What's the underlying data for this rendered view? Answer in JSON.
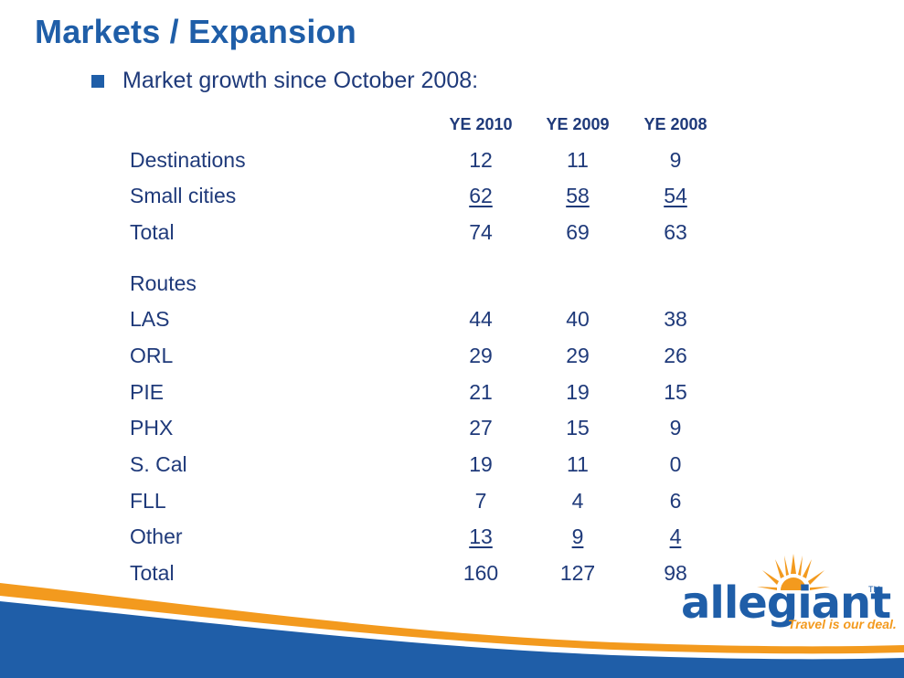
{
  "title": "Markets / Expansion",
  "bullet": "Market growth since October 2008:",
  "columns": [
    "YE 2010",
    "YE 2009",
    "YE 2008"
  ],
  "sections": {
    "destinations": {
      "rows": [
        {
          "label": "Destinations",
          "values": [
            "12",
            "11",
            "9"
          ]
        },
        {
          "label": "Small cities",
          "values": [
            "62",
            "58",
            "54"
          ]
        },
        {
          "label": "Total",
          "values": [
            "74",
            "69",
            "63"
          ]
        }
      ]
    },
    "routes": {
      "heading": "Routes",
      "rows": [
        {
          "label": "LAS",
          "values": [
            "44",
            "40",
            "38"
          ]
        },
        {
          "label": "ORL",
          "values": [
            "29",
            "29",
            "26"
          ]
        },
        {
          "label": "PIE",
          "values": [
            "21",
            "19",
            "15"
          ]
        },
        {
          "label": "PHX",
          "values": [
            "27",
            "15",
            "9"
          ]
        },
        {
          "label": "S. Cal",
          "values": [
            "19",
            "11",
            "0"
          ]
        },
        {
          "label": "FLL",
          "values": [
            "7",
            "4",
            "6"
          ]
        },
        {
          "label": "Other",
          "values": [
            "13",
            "9",
            "4"
          ]
        },
        {
          "label": "Total",
          "values": [
            "160",
            "127",
            "98"
          ]
        }
      ]
    }
  },
  "logo": {
    "wordmark": "allegiant",
    "tm": "TM",
    "tagline": "Travel is our deal.",
    "colors": {
      "blue": "#1f5ea8",
      "orange": "#f39a1e"
    }
  }
}
